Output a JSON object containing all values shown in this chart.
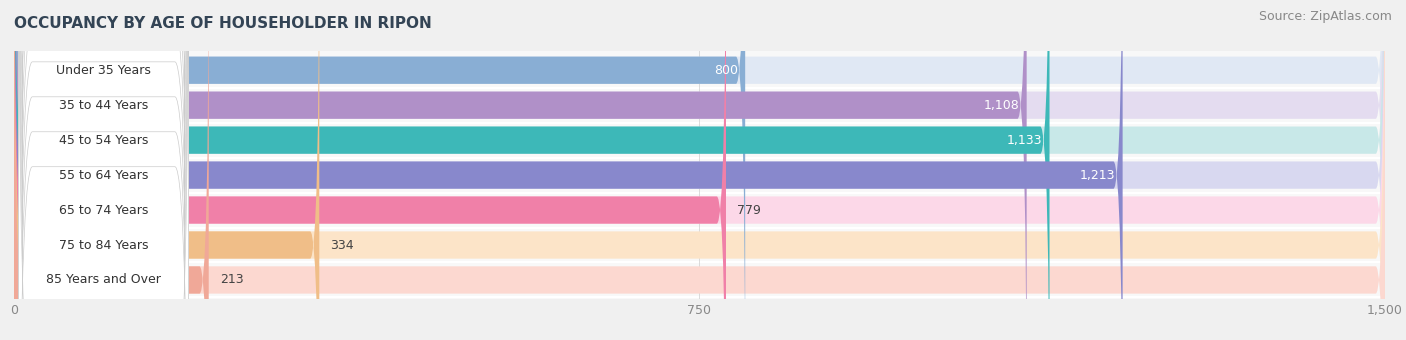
{
  "title": "OCCUPANCY BY AGE OF HOUSEHOLDER IN RIPON",
  "source": "Source: ZipAtlas.com",
  "categories": [
    "Under 35 Years",
    "35 to 44 Years",
    "45 to 54 Years",
    "55 to 64 Years",
    "65 to 74 Years",
    "75 to 84 Years",
    "85 Years and Over"
  ],
  "values": [
    800,
    1108,
    1133,
    1213,
    779,
    334,
    213
  ],
  "bar_colors": [
    "#89aed4",
    "#b090c8",
    "#3db8b8",
    "#8888cc",
    "#f080a8",
    "#f0be88",
    "#f0a898"
  ],
  "bar_bg_colors": [
    "#e0e8f4",
    "#e4dcf0",
    "#c8e8e8",
    "#d8d8f0",
    "#fcd8e8",
    "#fce4c8",
    "#fcd8d0"
  ],
  "xlim": [
    0,
    1500
  ],
  "xticks": [
    0,
    750,
    1500
  ],
  "value_inside": [
    true,
    true,
    true,
    true,
    false,
    false,
    false
  ],
  "background_color": "#f0f0f0",
  "plot_bg_color": "#f8f8f8",
  "title_fontsize": 11,
  "source_fontsize": 9,
  "bar_label_fontsize": 9,
  "tick_fontsize": 9,
  "category_fontsize": 9
}
